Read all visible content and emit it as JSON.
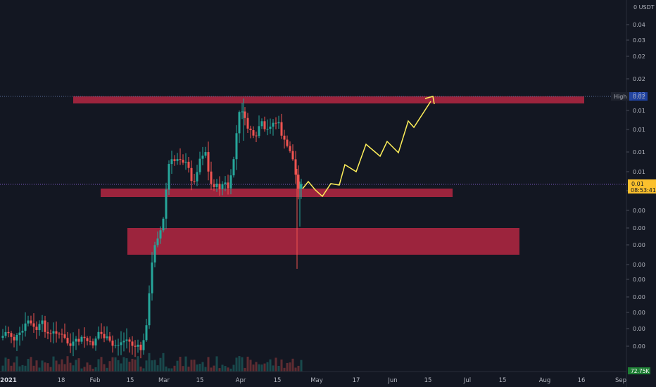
{
  "chart_data": {
    "type": "candlestick",
    "quote_label": "0 USDT",
    "y_ticks": [
      "0.04",
      "0.03",
      "0.02",
      "0.02",
      "0.02",
      "0.01",
      "0.01",
      "0.01",
      "0.01",
      "0.01",
      "0.00",
      "0.00",
      "0.00",
      "0.00",
      "0.00",
      "0.00",
      "0.00",
      "0.00",
      "0.00"
    ],
    "x_ticks": [
      "2021",
      "18",
      "Feb",
      "15",
      "Mar",
      "15",
      "Apr",
      "15",
      "May",
      "17",
      "Jun",
      "15",
      "Jul",
      "15",
      "Aug",
      "16",
      "Sep"
    ],
    "high_label": "High",
    "high_value": "0.02",
    "last_price": "0.01",
    "countdown": "08:53:41",
    "volume_label": "72.75K",
    "colors": {
      "background": "#131722",
      "up": "#26a69a",
      "down": "#ef5350",
      "zone": "#a3253f",
      "projection": "#fff05a",
      "axis_text": "#b2b5be"
    }
  }
}
